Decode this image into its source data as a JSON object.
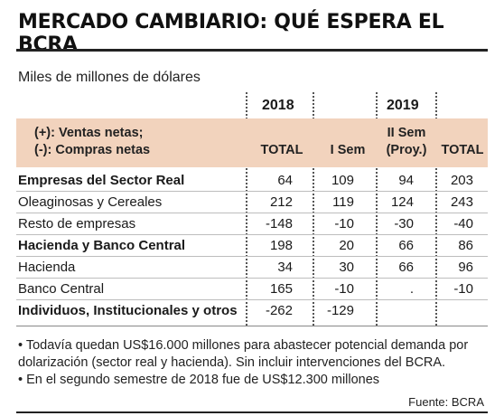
{
  "title": "MERCADO CAMBIARIO: QUÉ ESPERA EL BCRA",
  "subtitle": "Miles de millones de dólares",
  "years": {
    "y2018": "2018",
    "y2019": "2019"
  },
  "header": {
    "legend_line1": "(+): Ventas netas;",
    "legend_line2": "(-): Compras netas",
    "col_total_2018": "TOTAL",
    "col_isem": "I Sem",
    "col_iisem_line1": "II Sem",
    "col_iisem_line2": "(Proy.)",
    "col_total_2019": "TOTAL"
  },
  "rows": [
    {
      "label": "Empresas del Sector Real",
      "bold": true,
      "total2018": "64",
      "isem": "109",
      "iisem": "94",
      "total2019": "203"
    },
    {
      "label": "Oleaginosas y Cereales",
      "bold": false,
      "total2018": "212",
      "isem": "119",
      "iisem": "124",
      "total2019": "243"
    },
    {
      "label": "Resto de empresas",
      "bold": false,
      "total2018": "-148",
      "isem": "-10",
      "iisem": "-30",
      "total2019": "-40"
    },
    {
      "label": "Hacienda y Banco Central",
      "bold": true,
      "total2018": "198",
      "isem": "20",
      "iisem": "66",
      "total2019": "86"
    },
    {
      "label": "Hacienda",
      "bold": false,
      "total2018": "34",
      "isem": "30",
      "iisem": "66",
      "total2019": "96"
    },
    {
      "label": "Banco Central",
      "bold": false,
      "total2018": "165",
      "isem": "-10",
      "iisem": ".",
      "total2019": "-10"
    },
    {
      "label": "Individuos, Institucionales y otros",
      "bold": true,
      "total2018": "-262",
      "isem": "-129",
      "iisem": "",
      "total2019": ""
    }
  ],
  "notes": [
    "• Todavía quedan US$16.000 millones para abastecer potencial demanda por dolarización (sector real y hacienda). Sin incluir intervenciones del BCRA.",
    "• En el segundo semestre de 2018 fue de US$12.300 millones"
  ],
  "source": "Fuente: BCRA"
}
